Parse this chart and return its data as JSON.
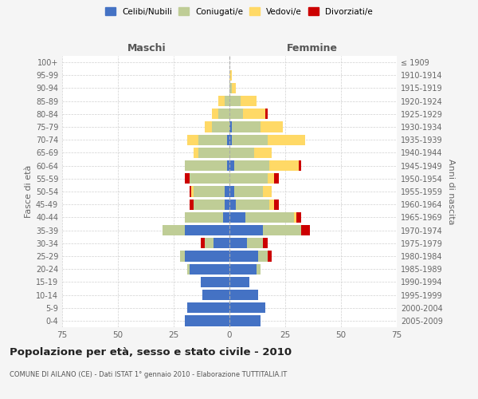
{
  "age_groups": [
    "0-4",
    "5-9",
    "10-14",
    "15-19",
    "20-24",
    "25-29",
    "30-34",
    "35-39",
    "40-44",
    "45-49",
    "50-54",
    "55-59",
    "60-64",
    "65-69",
    "70-74",
    "75-79",
    "80-84",
    "85-89",
    "90-94",
    "95-99",
    "100+"
  ],
  "birth_years": [
    "2005-2009",
    "2000-2004",
    "1995-1999",
    "1990-1994",
    "1985-1989",
    "1980-1984",
    "1975-1979",
    "1970-1974",
    "1965-1969",
    "1960-1964",
    "1955-1959",
    "1950-1954",
    "1945-1949",
    "1940-1944",
    "1935-1939",
    "1930-1934",
    "1925-1929",
    "1920-1924",
    "1915-1919",
    "1910-1914",
    "≤ 1909"
  ],
  "maschi": {
    "celibi": [
      20,
      19,
      12,
      13,
      18,
      20,
      7,
      20,
      3,
      2,
      2,
      0,
      1,
      0,
      1,
      0,
      0,
      0,
      0,
      0,
      0
    ],
    "coniugati": [
      0,
      0,
      0,
      0,
      1,
      2,
      4,
      10,
      17,
      14,
      14,
      18,
      19,
      14,
      13,
      8,
      5,
      2,
      0,
      0,
      0
    ],
    "vedovi": [
      0,
      0,
      0,
      0,
      0,
      0,
      0,
      0,
      0,
      0,
      1,
      0,
      0,
      2,
      5,
      3,
      3,
      3,
      0,
      0,
      0
    ],
    "divorziati": [
      0,
      0,
      0,
      0,
      0,
      0,
      2,
      0,
      0,
      2,
      1,
      2,
      0,
      0,
      0,
      0,
      0,
      0,
      0,
      0,
      0
    ]
  },
  "femmine": {
    "nubili": [
      14,
      16,
      13,
      9,
      12,
      13,
      8,
      15,
      7,
      3,
      2,
      0,
      2,
      0,
      1,
      1,
      0,
      0,
      0,
      0,
      0
    ],
    "coniugate": [
      0,
      0,
      0,
      0,
      2,
      4,
      7,
      17,
      22,
      15,
      13,
      17,
      16,
      11,
      16,
      13,
      6,
      5,
      1,
      0,
      0
    ],
    "vedove": [
      0,
      0,
      0,
      0,
      0,
      0,
      0,
      0,
      1,
      2,
      4,
      3,
      13,
      8,
      17,
      10,
      10,
      7,
      2,
      1,
      0
    ],
    "divorziate": [
      0,
      0,
      0,
      0,
      0,
      2,
      2,
      4,
      2,
      2,
      0,
      2,
      1,
      0,
      0,
      0,
      1,
      0,
      0,
      0,
      0
    ]
  },
  "colors": {
    "celibi_nubili": "#4472C4",
    "coniugati": "#BFCD96",
    "vedovi": "#FFD966",
    "divorziati": "#CC0000"
  },
  "title": "Popolazione per età, sesso e stato civile - 2010",
  "subtitle": "COMUNE DI AILANO (CE) - Dati ISTAT 1° gennaio 2010 - Elaborazione TUTTITALIA.IT",
  "xlabel_left": "Maschi",
  "xlabel_right": "Femmine",
  "ylabel_left": "Fasce di età",
  "ylabel_right": "Anni di nascita",
  "xlim": 75,
  "background_color": "#f5f5f5",
  "plot_bg": "#ffffff",
  "legend_labels": [
    "Celibi/Nubili",
    "Coniugati/e",
    "Vedovi/e",
    "Divorziati/e"
  ]
}
